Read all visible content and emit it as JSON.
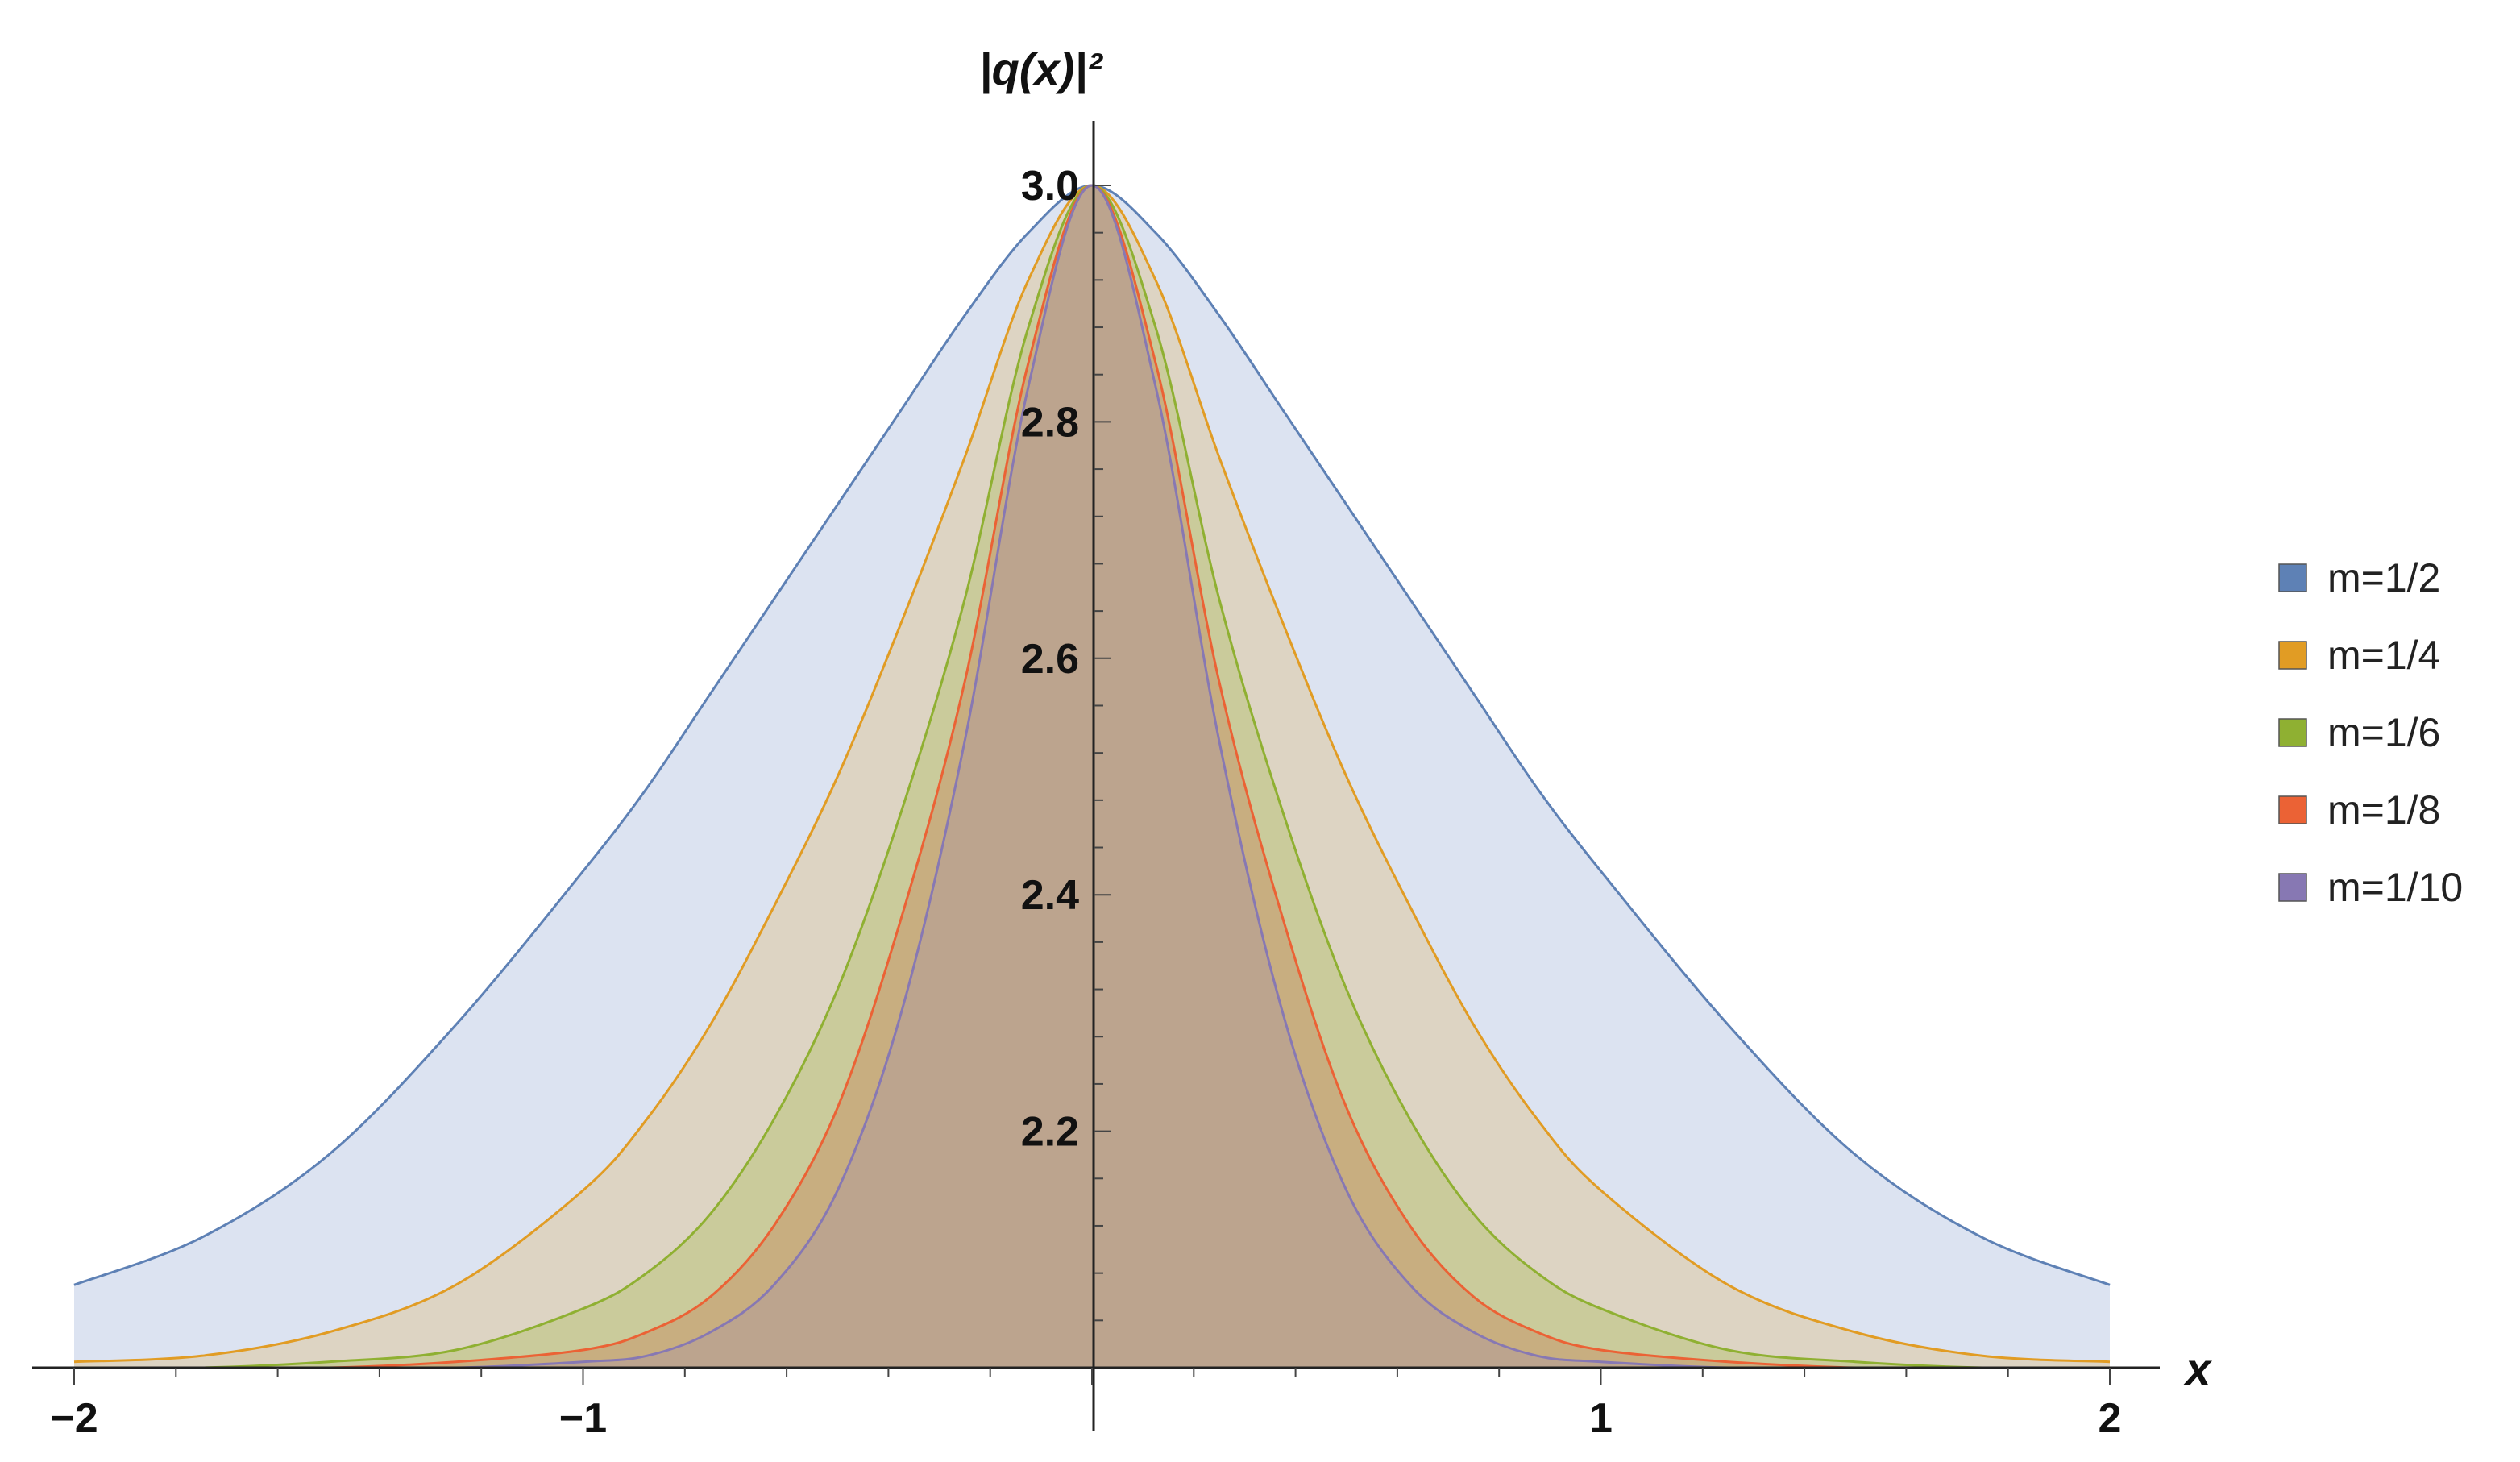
{
  "chart_data": {
    "type": "area",
    "xlabel": "x",
    "ylabel": "|q(x)|²",
    "xlim": [
      -2,
      2
    ],
    "ylim": [
      2.0,
      3.0
    ],
    "x_ticks": [
      -2,
      -1,
      1,
      2
    ],
    "x_tick_labels": [
      "−2",
      "−1",
      "1",
      "2"
    ],
    "y_ticks": [
      2.2,
      2.4,
      2.6,
      2.8,
      3.0
    ],
    "y_tick_labels": [
      "2.2",
      "2.4",
      "2.6",
      "2.8",
      "3.0"
    ],
    "grid": false,
    "legend_position": "right",
    "x": [
      -2.0,
      -1.75,
      -1.5,
      -1.25,
      -1.0,
      -0.875,
      -0.75,
      -0.625,
      -0.5,
      -0.375,
      -0.25,
      -0.125,
      0.0,
      0.125,
      0.25,
      0.375,
      0.5,
      0.625,
      0.75,
      0.875,
      1.0,
      1.25,
      1.5,
      1.75,
      2.0
    ],
    "series": [
      {
        "name": "m=1/2",
        "color": "#5E81B5",
        "fill": "#DCE3F1",
        "values": [
          2.07,
          2.11,
          2.18,
          2.29,
          2.42,
          2.49,
          2.57,
          2.65,
          2.73,
          2.81,
          2.89,
          2.96,
          3.0,
          2.96,
          2.89,
          2.81,
          2.73,
          2.65,
          2.57,
          2.49,
          2.42,
          2.29,
          2.18,
          2.11,
          2.07
        ]
      },
      {
        "name": "m=1/4",
        "color": "#E19C24",
        "fill": "#DDD4C3",
        "values": [
          2.005,
          2.01,
          2.03,
          2.07,
          2.15,
          2.21,
          2.29,
          2.39,
          2.5,
          2.63,
          2.77,
          2.92,
          3.0,
          2.92,
          2.77,
          2.63,
          2.5,
          2.39,
          2.29,
          2.21,
          2.15,
          2.07,
          2.03,
          2.01,
          2.005
        ]
      },
      {
        "name": "m=1/6",
        "color": "#8FB032",
        "fill": "#CACB9B",
        "values": [
          2.0,
          2.0,
          2.005,
          2.015,
          2.05,
          2.08,
          2.13,
          2.21,
          2.32,
          2.47,
          2.65,
          2.88,
          3.0,
          2.88,
          2.65,
          2.47,
          2.32,
          2.21,
          2.13,
          2.08,
          2.05,
          2.015,
          2.005,
          2.0,
          2.0
        ]
      },
      {
        "name": "m=1/8",
        "color": "#EB6235",
        "fill": "#C8AE80",
        "values": [
          2.0,
          2.0,
          2.0,
          2.005,
          2.015,
          2.03,
          2.06,
          2.12,
          2.22,
          2.38,
          2.58,
          2.85,
          3.0,
          2.85,
          2.58,
          2.38,
          2.22,
          2.12,
          2.06,
          2.03,
          2.015,
          2.005,
          2.0,
          2.0,
          2.0
        ]
      },
      {
        "name": "m=1/10",
        "color": "#8778B3",
        "fill": "#BCA48E",
        "values": [
          2.0,
          2.0,
          2.0,
          2.0,
          2.005,
          2.01,
          2.03,
          2.07,
          2.15,
          2.3,
          2.53,
          2.83,
          3.0,
          2.83,
          2.53,
          2.3,
          2.15,
          2.07,
          2.03,
          2.01,
          2.005,
          2.0,
          2.0,
          2.0,
          2.0
        ]
      }
    ]
  }
}
